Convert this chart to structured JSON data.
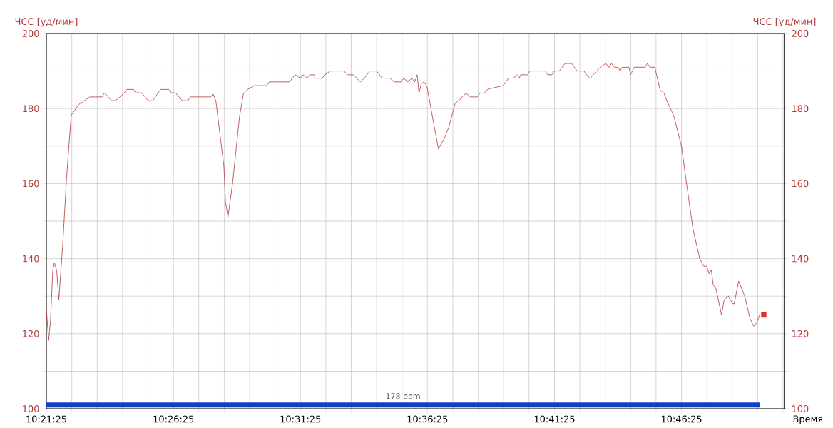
{
  "chart_data": {
    "type": "line",
    "ylabel": "ЧСС [уд/мин]",
    "y2label": "ЧСС [уд/мин]",
    "xlabel": "Время",
    "xlim": [
      10.3569,
      10.8412
    ],
    "xticks": [
      {
        "value": 10.3569,
        "label": "10:21:25"
      },
      {
        "value": 10.3736,
        "label": null
      },
      {
        "value": 10.3903,
        "label": null
      },
      {
        "value": 10.4069,
        "label": null
      },
      {
        "value": 10.4236,
        "label": null
      },
      {
        "value": 10.4403,
        "label": "10:26:25"
      },
      {
        "value": 10.4569,
        "label": null
      },
      {
        "value": 10.4736,
        "label": null
      },
      {
        "value": 10.4903,
        "label": null
      },
      {
        "value": 10.5069,
        "label": null
      },
      {
        "value": 10.5236,
        "label": "10:31:25"
      },
      {
        "value": 10.5403,
        "label": null
      },
      {
        "value": 10.5569,
        "label": null
      },
      {
        "value": 10.5736,
        "label": null
      },
      {
        "value": 10.5903,
        "label": null
      },
      {
        "value": 10.6069,
        "label": "10:36:25"
      },
      {
        "value": 10.6236,
        "label": null
      },
      {
        "value": 10.6403,
        "label": null
      },
      {
        "value": 10.6569,
        "label": null
      },
      {
        "value": 10.6736,
        "label": null
      },
      {
        "value": 10.6903,
        "label": "10:41:25"
      },
      {
        "value": 10.7069,
        "label": null
      },
      {
        "value": 10.7236,
        "label": null
      },
      {
        "value": 10.7403,
        "label": null
      },
      {
        "value": 10.7569,
        "label": null
      },
      {
        "value": 10.7736,
        "label": "10:46:25"
      },
      {
        "value": 10.7903,
        "label": null
      },
      {
        "value": 10.8069,
        "label": null
      },
      {
        "value": 10.8236,
        "label": null
      },
      {
        "value": 10.8403,
        "label": null
      }
    ],
    "ylim": [
      100,
      200
    ],
    "yticks": [
      100,
      {
        "value": 110,
        "label": null
      },
      120,
      {
        "value": 130,
        "label": null
      },
      140,
      {
        "value": 150,
        "label": null
      },
      160,
      {
        "value": 170,
        "label": null
      },
      180,
      {
        "value": 190,
        "label": null
      },
      200
    ],
    "y2lim": [
      100,
      200
    ],
    "y2ticks": [
      100,
      {
        "value": 110,
        "label": null
      },
      120,
      {
        "value": 130,
        "label": null
      },
      140,
      {
        "value": 150,
        "label": null
      },
      160,
      {
        "value": 170,
        "label": null
      },
      180,
      {
        "value": 190,
        "label": null
      },
      200
    ],
    "grid": true,
    "annotations": [
      {
        "text": "178 bpm",
        "x": 10.5909,
        "y": 101
      }
    ],
    "series": [
      {
        "color": "#b03a3a",
        "x": [
          10.3569,
          10.3584,
          10.3596,
          10.3611,
          10.3622,
          10.3637,
          10.3651,
          10.3676,
          10.3702,
          10.3732,
          10.3782,
          10.3854,
          10.3934,
          10.3952,
          10.3997,
          10.4024,
          10.4077,
          10.4096,
          10.4141,
          10.4157,
          10.4194,
          10.4237,
          10.4266,
          10.4319,
          10.4372,
          10.4391,
          10.4417,
          10.4461,
          10.4497,
          10.4514,
          10.4649,
          10.4662,
          10.4681,
          10.4734,
          10.4744,
          10.4761,
          10.4791,
          10.4836,
          10.4862,
          10.4889,
          10.4934,
          10.5014,
          10.5032,
          10.5164,
          10.5201,
          10.5236,
          10.5254,
          10.5277,
          10.5297,
          10.5326,
          10.5334,
          10.5379,
          10.5396,
          10.5432,
          10.5521,
          10.5547,
          10.5584,
          10.5629,
          10.5656,
          10.5691,
          10.5736,
          10.5771,
          10.5824,
          10.5851,
          10.5896,
          10.5914,
          10.5941,
          10.5967,
          10.5986,
          10.6002,
          10.6014,
          10.6029,
          10.6047,
          10.6066,
          10.6092,
          10.6141,
          10.6181,
          10.6209,
          10.6252,
          10.6281,
          10.6297,
          10.6324,
          10.6351,
          10.6396,
          10.6414,
          10.6441,
          10.6467,
          10.6566,
          10.6601,
          10.6636,
          10.6654,
          10.6672,
          10.6681,
          10.6726,
          10.6741,
          10.6842,
          10.6859,
          10.6886,
          10.6902,
          10.6934,
          10.6971,
          10.7016,
          10.7051,
          10.7096,
          10.7114,
          10.7137,
          10.7167,
          10.7202,
          10.7239,
          10.7261,
          10.7277,
          10.7296,
          10.7319,
          10.7334,
          10.7346,
          10.7391,
          10.7402,
          10.7426,
          10.7497,
          10.7512,
          10.7529,
          10.7561,
          10.7596,
          10.7622,
          10.7641,
          10.7686,
          10.7736,
          10.7766,
          10.7811,
          10.7856,
          10.7882,
          10.7901,
          10.7917,
          10.7932,
          10.7944,
          10.7962,
          10.7999,
          10.8016,
          10.8044,
          10.8071,
          10.8082,
          10.8111,
          10.8151,
          10.8186,
          10.8209,
          10.8231,
          10.8249
        ],
        "values": [
          126.6,
          118.2,
          123.3,
          136.8,
          138.9,
          136.8,
          129.1,
          143.4,
          161.7,
          178.2,
          181.1,
          183.1,
          183.1,
          184.2,
          182.1,
          182.1,
          184,
          185.1,
          185.1,
          184.2,
          184.2,
          182.1,
          182.1,
          185.1,
          185.1,
          184.2,
          184.2,
          182.1,
          182.1,
          183.1,
          183.1,
          184,
          182.1,
          164.6,
          155.1,
          151.1,
          160.2,
          177.8,
          184,
          185.1,
          186.1,
          186.1,
          187.1,
          187.1,
          189,
          188.1,
          189,
          188.1,
          189,
          189,
          188.1,
          188.1,
          189,
          190,
          190,
          189,
          189,
          187.1,
          188.1,
          190,
          190,
          188.1,
          188.1,
          187.1,
          187.1,
          188.1,
          187.1,
          188.1,
          187.1,
          189,
          184.1,
          186.6,
          187.1,
          185.9,
          180.1,
          169.3,
          172.1,
          175,
          181.5,
          182.3,
          183.1,
          184.1,
          183.1,
          183.1,
          184.1,
          184.1,
          185.2,
          186.1,
          188.1,
          188.1,
          189,
          188.1,
          189,
          189,
          190,
          190,
          189,
          189,
          190,
          190,
          192,
          192,
          190,
          190,
          189,
          188,
          189.5,
          191,
          192,
          191,
          192,
          191,
          191,
          190,
          191,
          191,
          189,
          191,
          191,
          192,
          191,
          191,
          185,
          184,
          182,
          178,
          170,
          161,
          148,
          140,
          138,
          138,
          136,
          137,
          133,
          132,
          125,
          129,
          130,
          128,
          128,
          134,
          130,
          124,
          122,
          123,
          125
        ]
      },
      {
        "color": "#1040c8",
        "x": [
          10.3569,
          10.8249
        ],
        "values": [
          101,
          101
        ]
      },
      {
        "type": "scatter",
        "color": "#e03030",
        "marker": "square",
        "x": [
          10.8276
        ],
        "values": [
          125
        ]
      }
    ]
  }
}
